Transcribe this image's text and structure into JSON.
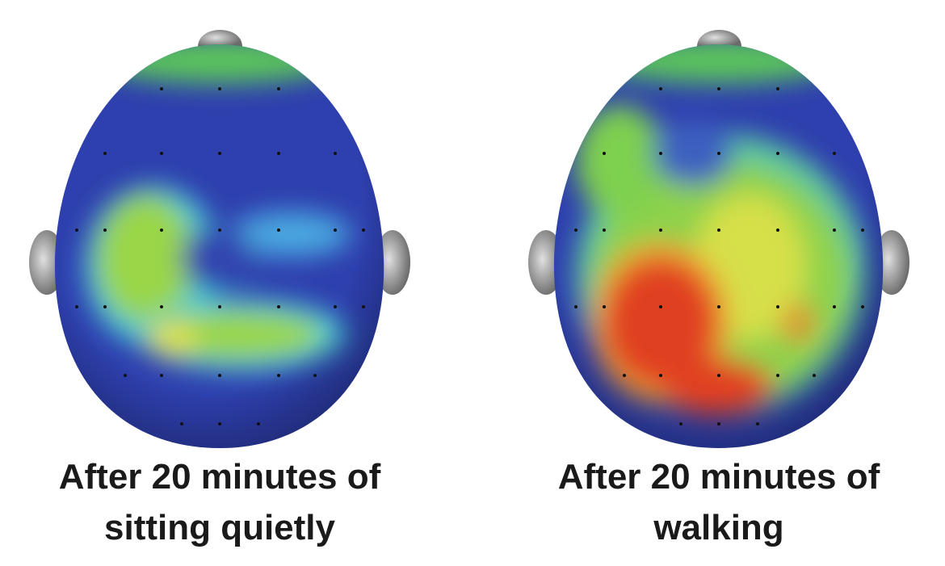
{
  "panels": [
    {
      "caption": [
        "After 20 minutes of",
        "sitting quietly"
      ]
    },
    {
      "caption": [
        "After 20 minutes of",
        "walking"
      ]
    }
  ]
}
